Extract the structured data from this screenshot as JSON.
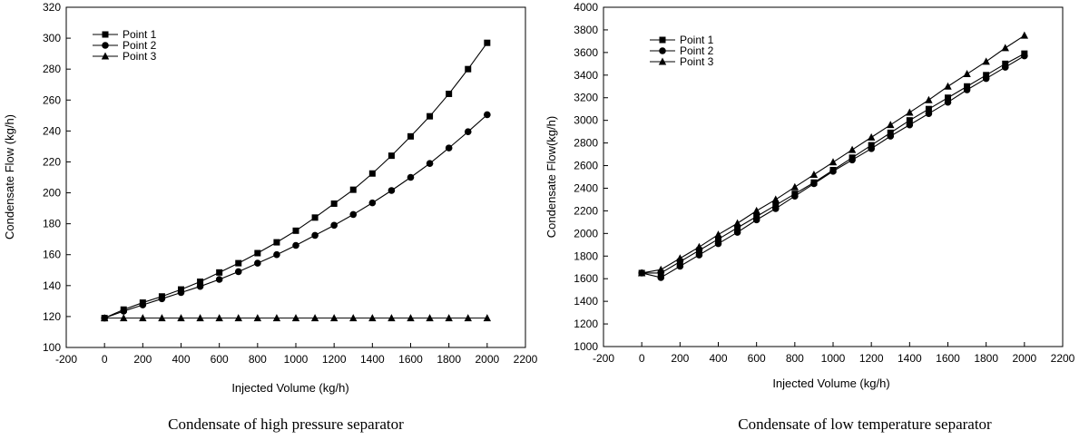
{
  "chart_data": [
    {
      "type": "line",
      "caption": "Condensate of high pressure separator",
      "xlabel": "Injected Volume (kg/h)",
      "ylabel": "Condensate Flow (kg/h)",
      "xlim": [
        -200,
        2200
      ],
      "ylim": [
        100,
        320
      ],
      "xticks": [
        -200,
        0,
        200,
        400,
        600,
        800,
        1000,
        1200,
        1400,
        1600,
        1800,
        2000,
        2200
      ],
      "yticks": [
        100,
        120,
        140,
        160,
        180,
        200,
        220,
        240,
        260,
        280,
        300,
        320
      ],
      "legend_position": "top-left",
      "x": [
        0,
        100,
        200,
        300,
        400,
        500,
        600,
        700,
        800,
        900,
        1000,
        1100,
        1200,
        1300,
        1400,
        1500,
        1600,
        1700,
        1800,
        1900,
        2000
      ],
      "series": [
        {
          "name": "Point 1",
          "marker": "square",
          "values": [
            119,
            124.5,
            129,
            133,
            137.5,
            142.5,
            148.5,
            154.5,
            161,
            168,
            175.5,
            184,
            193,
            202,
            212.5,
            224,
            236.5,
            249.5,
            264,
            280,
            297
          ]
        },
        {
          "name": "Point 2",
          "marker": "circle",
          "values": [
            119,
            123.5,
            127.5,
            131.5,
            135.5,
            139.5,
            144,
            149,
            154.5,
            160,
            166,
            172.5,
            179,
            186,
            193.5,
            201.5,
            210,
            219,
            229,
            239.5,
            250.5
          ]
        },
        {
          "name": "Point 3",
          "marker": "triangle",
          "values": [
            119,
            119,
            119,
            119,
            119,
            119,
            119,
            119,
            119,
            119,
            119,
            119,
            119,
            119,
            119,
            119,
            119,
            119,
            119,
            119,
            119
          ]
        }
      ]
    },
    {
      "type": "line",
      "caption": "Condensate of low temperature separator",
      "xlabel": "Injected Volume (kg/h)",
      "ylabel": "Condensate Flow(kg/h)",
      "xlim": [
        -200,
        2200
      ],
      "ylim": [
        1000,
        4000
      ],
      "xticks": [
        -200,
        0,
        200,
        400,
        600,
        800,
        1000,
        1200,
        1400,
        1600,
        1800,
        2000,
        2200
      ],
      "yticks": [
        1000,
        1200,
        1400,
        1600,
        1800,
        2000,
        2200,
        2400,
        2600,
        2800,
        3000,
        3200,
        3400,
        3600,
        3800,
        4000
      ],
      "legend_position": "top-left",
      "x": [
        0,
        100,
        200,
        300,
        400,
        500,
        600,
        700,
        800,
        900,
        1000,
        1100,
        1200,
        1300,
        1400,
        1500,
        1600,
        1700,
        1800,
        1900,
        2000
      ],
      "series": [
        {
          "name": "Point 1",
          "marker": "square",
          "values": [
            1650,
            1650,
            1750,
            1850,
            1950,
            2050,
            2150,
            2250,
            2350,
            2450,
            2560,
            2670,
            2780,
            2890,
            3000,
            3100,
            3200,
            3300,
            3400,
            3500,
            3590
          ]
        },
        {
          "name": "Point 2",
          "marker": "circle",
          "values": [
            1650,
            1610,
            1710,
            1810,
            1910,
            2010,
            2120,
            2220,
            2330,
            2440,
            2550,
            2650,
            2750,
            2860,
            2960,
            3060,
            3160,
            3270,
            3370,
            3470,
            3570
          ]
        },
        {
          "name": "Point 3",
          "marker": "triangle",
          "values": [
            1650,
            1680,
            1780,
            1880,
            1990,
            2090,
            2200,
            2300,
            2410,
            2520,
            2630,
            2740,
            2850,
            2960,
            3070,
            3180,
            3300,
            3410,
            3520,
            3640,
            3750
          ]
        }
      ]
    }
  ]
}
